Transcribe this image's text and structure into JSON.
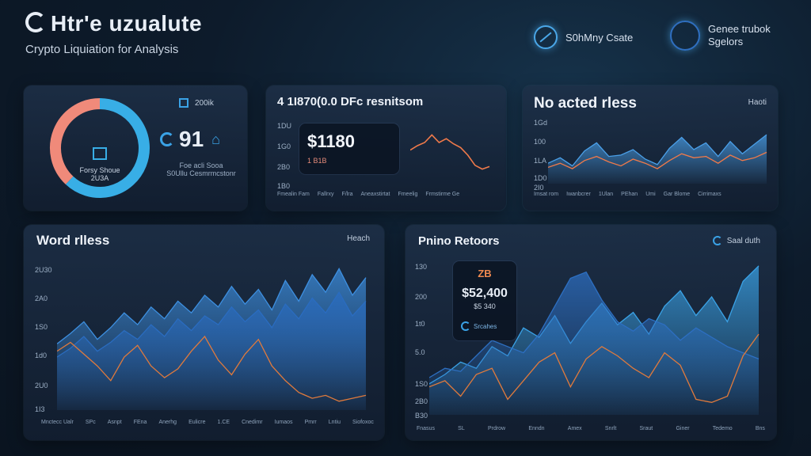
{
  "header": {
    "title": "Htr'e uzualute",
    "subtitle": "Crypto Liquiation for Analysis",
    "link1": "S0hMny Csate",
    "link2_line1": "Genee trubok",
    "link2_line2": "Sgelors"
  },
  "panel1": {
    "corner_label": "200ik",
    "donut_center_label": "Forsy Shoue",
    "donut_center_value": "2U3A",
    "metric_value": "91",
    "metric_caption1": "Foe acli Sooa",
    "metric_caption2": "S0Ullu Cesmrmcstonr",
    "chart_data": {
      "type": "pie",
      "values": [
        62,
        38
      ],
      "colors": [
        "#38aee6",
        "#f08a7a"
      ]
    }
  },
  "panel2": {
    "title": "4 1I870(0.0 DFc resnitsom",
    "value": "$1180",
    "value_caption": "1 B1B",
    "y_ticks": [
      "1DU",
      "1G0",
      "2B0",
      "1B0"
    ],
    "legend": [
      "Fmealin Fam",
      "Fallrxy",
      "F/lra",
      "Aneaxstirtat",
      "Fmeelig",
      "Frmstirme Ge"
    ],
    "chart_data": {
      "type": "line",
      "series": [
        {
          "color": "#f07a4a",
          "values": [
            48,
            55,
            60,
            72,
            60,
            66,
            58,
            52,
            40,
            24,
            18,
            22
          ]
        }
      ],
      "ylim": [
        0,
        100
      ]
    }
  },
  "panel3": {
    "title": "No acted rless",
    "corner_label": "Haoti",
    "y_ticks": [
      "1Gd",
      "100",
      "1LA",
      "1D0",
      "2I0"
    ],
    "legend": [
      "Imsat rom",
      "Iwanbcrer",
      "1Ulan",
      "PEhan",
      "Umi",
      "Gar Blome",
      "Cirrimaxs"
    ],
    "chart_data": {
      "type": "area",
      "series": [
        {
          "color": "#4a9fe8",
          "values": [
            30,
            38,
            26,
            48,
            60,
            40,
            42,
            50,
            36,
            28,
            52,
            68,
            50,
            60,
            40,
            62,
            44,
            58,
            72
          ]
        },
        {
          "color": "#f07a4a",
          "values": [
            24,
            30,
            22,
            34,
            40,
            32,
            26,
            36,
            30,
            22,
            34,
            44,
            38,
            40,
            30,
            42,
            34,
            38,
            46
          ]
        }
      ],
      "ylim": [
        0,
        100
      ]
    }
  },
  "panel4": {
    "title": "Word rlless",
    "corner_label": "Heach",
    "y_ticks": [
      "2U30",
      "2A0",
      "1S0",
      "1d0",
      "2U0",
      "1I3"
    ],
    "x_ticks": [
      "Mnctecc Ualr",
      "SPc",
      "Asnpt",
      "FEna",
      "Anerhg",
      "Eulicre",
      "1.CE",
      "Cnedimr",
      "Iumaos",
      "Pmrr",
      "Lntiu",
      "Siofoxoc"
    ],
    "chart_data": {
      "type": "area",
      "series": [
        {
          "color": "#3d8fe0",
          "values": [
            45,
            52,
            60,
            48,
            56,
            66,
            58,
            70,
            62,
            74,
            66,
            78,
            70,
            84,
            72,
            82,
            68,
            88,
            74,
            92,
            80,
            96,
            78,
            90
          ]
        },
        {
          "color": "#2a6cc0",
          "values": [
            36,
            42,
            50,
            40,
            46,
            54,
            48,
            58,
            50,
            62,
            54,
            64,
            58,
            70,
            60,
            68,
            56,
            72,
            62,
            76,
            66,
            80,
            64,
            74
          ]
        },
        {
          "color": "#e07a3c",
          "values": [
            40,
            46,
            38,
            30,
            20,
            36,
            44,
            30,
            22,
            28,
            40,
            50,
            34,
            24,
            38,
            48,
            30,
            20,
            12,
            8,
            10,
            6,
            8,
            10
          ]
        }
      ],
      "ylim": [
        0,
        100
      ]
    }
  },
  "panel5": {
    "title": "Pnino Retoors",
    "corner_label": "Saal duth",
    "value_top": "ZB",
    "value": "$52,400",
    "value_caption": "$5 340",
    "value_footer": "Srcahes",
    "y_ticks": [
      "130",
      "200",
      "1t0",
      "5.0",
      "1S0",
      "2B0",
      "B30"
    ],
    "x_ticks": [
      "Fnasus",
      "SL",
      "Prdrow",
      "Enndn",
      "Amex",
      "Snrlt",
      "Sraut",
      "Giner",
      "Tedemo",
      "Bns"
    ],
    "chart_data": {
      "type": "area",
      "series": [
        {
          "color": "#3aa2e6",
          "values": [
            20,
            26,
            34,
            30,
            44,
            38,
            56,
            50,
            64,
            46,
            60,
            72,
            58,
            66,
            52,
            70,
            80,
            64,
            76,
            60,
            86,
            96
          ]
        },
        {
          "color": "#2d6fc2",
          "values": [
            24,
            30,
            28,
            38,
            48,
            44,
            40,
            52,
            70,
            88,
            92,
            74,
            60,
            54,
            62,
            58,
            48,
            56,
            50,
            44,
            40,
            36
          ]
        },
        {
          "color": "#e07a3c",
          "values": [
            18,
            22,
            12,
            26,
            30,
            10,
            22,
            34,
            40,
            18,
            36,
            44,
            38,
            30,
            24,
            40,
            32,
            10,
            8,
            12,
            38,
            52
          ]
        }
      ],
      "ylim": [
        0,
        100
      ]
    }
  }
}
